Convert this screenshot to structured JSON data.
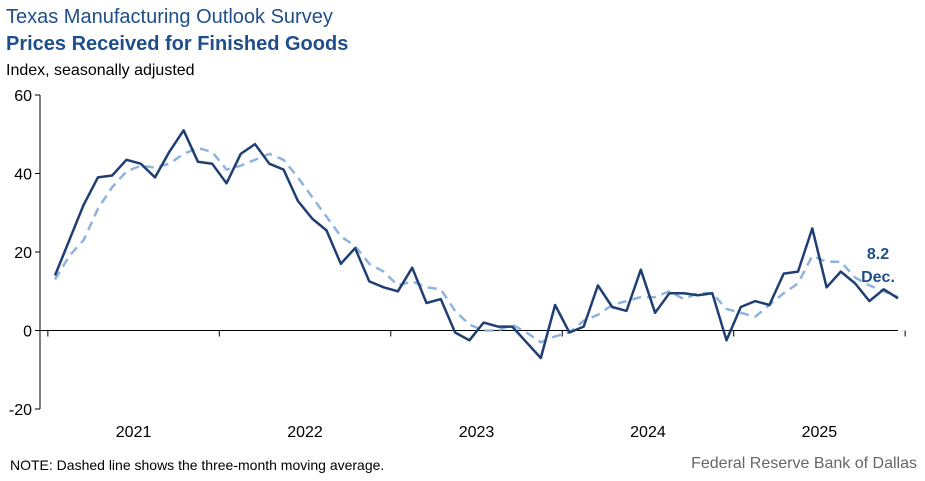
{
  "header": {
    "title": "Texas Manufacturing  Outlook  Survey",
    "subtitle": "Prices Received for Finished Goods",
    "units": "Index,  seasonally  adjusted"
  },
  "footer": {
    "note": "NOTE: Dashed line shows the three-month  moving average.",
    "source": "Federal Reserve Bank of Dallas"
  },
  "colors": {
    "actual": "#1f3f73",
    "moving_average": "#8fb3df",
    "title": "#1f4e8c"
  },
  "chart_data": {
    "type": "line",
    "title": "Prices Received for Finished Goods",
    "ylabel": "Index, seasonally adjusted",
    "ylim": [
      -20,
      60
    ],
    "yticks": [
      -20,
      0,
      20,
      40,
      60
    ],
    "year_labels": [
      "2021",
      "2022",
      "2023",
      "2024",
      "2025"
    ],
    "x_start": "2021-01",
    "x_end": "2025-12",
    "series": [
      {
        "name": "Prices received index",
        "style": "solid",
        "values": [
          14,
          23,
          32,
          39,
          39.5,
          43.5,
          42.5,
          39,
          45.5,
          51,
          43,
          42.5,
          37.5,
          45,
          47.5,
          42.5,
          41,
          33,
          28.5,
          25.5,
          17,
          21,
          12.5,
          11,
          10,
          16,
          7,
          8,
          -0.5,
          -2.5,
          2,
          1,
          1,
          -3,
          -7,
          6.5,
          -0.5,
          1,
          11.5,
          6,
          5,
          15.5,
          4.5,
          9.5,
          9.5,
          9,
          9.5,
          -2.5,
          6,
          7.5,
          6.5,
          14.5,
          15,
          26,
          11,
          15,
          12,
          7.5,
          10.5,
          8.2
        ]
      },
      {
        "name": "Three-month moving average",
        "style": "dashed",
        "values": [
          13,
          19,
          23,
          31,
          36.5,
          40.5,
          42,
          41.5,
          42.5,
          45,
          46.5,
          45.5,
          41,
          42,
          43.5,
          45,
          43.5,
          39,
          34,
          29,
          24,
          21.5,
          17,
          15,
          11.5,
          12.5,
          11,
          10.5,
          5,
          1.5,
          0,
          0,
          1.5,
          -0.5,
          -3,
          -1.5,
          -0.5,
          2.5,
          4,
          6.5,
          7.5,
          8.5,
          8.5,
          10,
          8,
          9.5,
          9.5,
          5.5,
          4.5,
          3.5,
          6.5,
          9.5,
          12,
          19,
          17.5,
          17.5,
          13.5,
          11.5,
          10,
          8.5
        ]
      }
    ],
    "annotation": {
      "value_label": "8.2",
      "date_label": "Dec."
    }
  }
}
